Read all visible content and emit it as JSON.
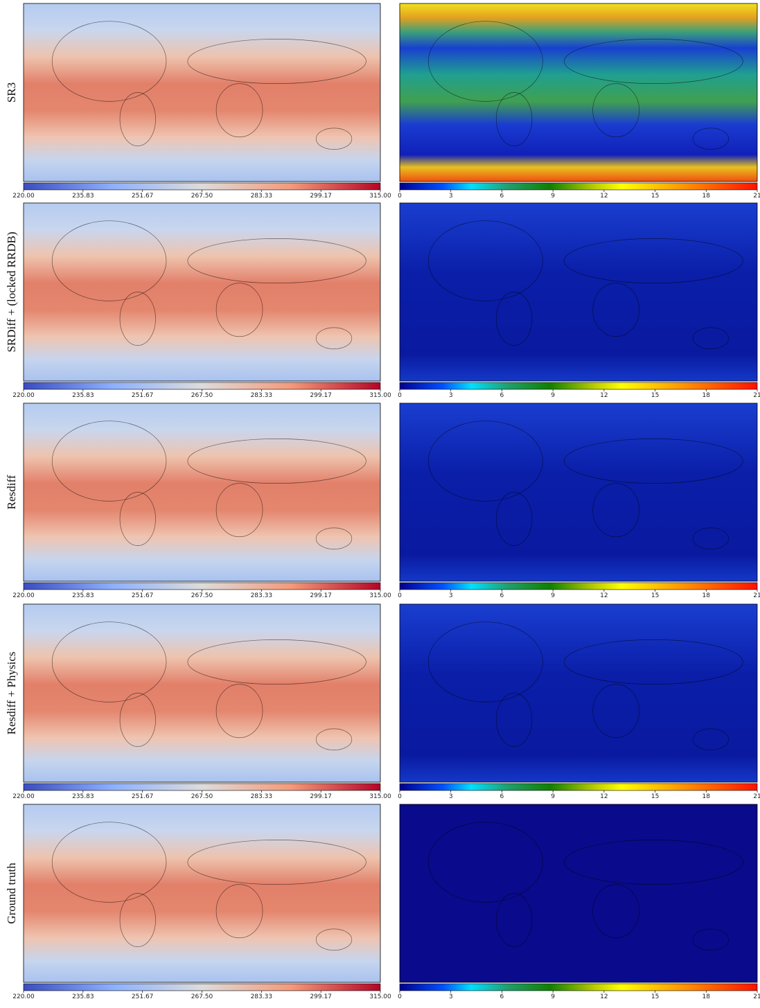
{
  "rows": [
    {
      "label": "SR3"
    },
    {
      "label": "SRDiff + (locked RRDB)"
    },
    {
      "label": "Resdiff"
    },
    {
      "label": "Resdiff + Physics"
    },
    {
      "label": "Ground truth"
    }
  ],
  "temperature_colorbar": {
    "lim": [
      220,
      315
    ],
    "ticks": [
      {
        "value": 220,
        "label": "220.00"
      },
      235.83,
      251.67,
      {
        "value": 267.5,
        "label": "267.50"
      },
      283.33,
      299.17,
      {
        "value": 315,
        "label": "315.00"
      }
    ]
  },
  "error_colorbar": {
    "lim": [
      0,
      21
    ],
    "ticks": [
      0,
      3,
      6,
      9,
      12,
      15,
      18,
      21
    ]
  }
}
